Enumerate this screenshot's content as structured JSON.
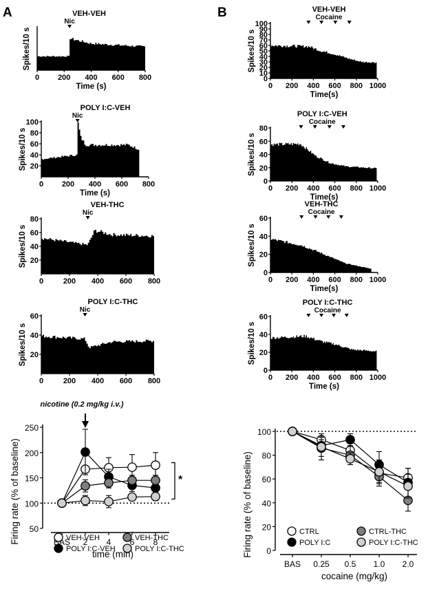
{
  "panels": {
    "A": "A",
    "B": "B"
  },
  "chart_data": [
    {
      "type": "bar",
      "id": "A-veh-veh",
      "title": "VEH-VEH",
      "marker_label": "Nic",
      "marker_times": [
        240
      ],
      "xlabel": "Time (s)",
      "ylabel": "Spikes/10 s",
      "xlim": [
        0,
        800
      ],
      "ylim": [
        0,
        40
      ],
      "xticks": [
        0,
        200,
        400,
        600,
        800
      ],
      "yticks": [],
      "profile": [
        [
          0,
          13
        ],
        [
          240,
          13
        ],
        [
          245,
          30
        ],
        [
          265,
          29
        ],
        [
          400,
          25
        ],
        [
          800,
          22
        ]
      ],
      "end_time": 800
    },
    {
      "type": "bar",
      "id": "A-polyic-veh",
      "title": "POLY I:C-VEH",
      "marker_label": "Nic",
      "marker_times": [
        270
      ],
      "xlabel": "Time (s)",
      "ylabel": "Spikes/10 s",
      "xlim": [
        0,
        800
      ],
      "ylim": [
        0,
        100
      ],
      "xticks": [
        0,
        200,
        400,
        600,
        800
      ],
      "yticks": [
        20,
        40,
        60,
        80,
        100
      ],
      "profile": [
        [
          0,
          32
        ],
        [
          270,
          40
        ],
        [
          275,
          97
        ],
        [
          295,
          72
        ],
        [
          330,
          58
        ],
        [
          650,
          58
        ],
        [
          730,
          50
        ]
      ],
      "end_time": 730
    },
    {
      "type": "bar",
      "id": "A-veh-thc",
      "title": "VEH-THC",
      "marker_label": "Nic",
      "marker_times": [
        330
      ],
      "xlabel": "",
      "ylabel": "Spikes/10 s",
      "xlim": [
        0,
        800
      ],
      "ylim": [
        0,
        80
      ],
      "xticks": [
        0,
        200,
        400,
        600,
        800
      ],
      "yticks": [
        20,
        40,
        60,
        80
      ],
      "profile": [
        [
          0,
          52
        ],
        [
          330,
          42
        ],
        [
          380,
          63
        ],
        [
          500,
          57
        ],
        [
          800,
          55
        ]
      ],
      "end_time": 800
    },
    {
      "type": "bar",
      "id": "A-polyic-thc",
      "title": "POLY I:C-THC",
      "marker_label": "Nic",
      "marker_times": [
        310
      ],
      "xlabel": "",
      "ylabel": "Spikes/10 s",
      "xlim": [
        0,
        800
      ],
      "ylim": [
        0,
        60
      ],
      "xticks": [
        0,
        200,
        400,
        600,
        800
      ],
      "yticks": [
        20,
        40,
        60
      ],
      "profile": [
        [
          0,
          39
        ],
        [
          310,
          36
        ],
        [
          340,
          27
        ],
        [
          500,
          33
        ],
        [
          800,
          34
        ]
      ],
      "end_time": 800
    },
    {
      "type": "bar",
      "id": "B-veh-veh",
      "title": "VEH-VEH",
      "marker_label": "Cocaine",
      "marker_times": [
        355,
        475,
        605,
        735
      ],
      "xlabel": "Time(s)",
      "ylabel": "Spikes/10 s",
      "xlim": [
        0,
        1000
      ],
      "ylim": [
        0,
        100
      ],
      "xticks": [
        0,
        200,
        400,
        600,
        800,
        1000
      ],
      "yticks": [
        0,
        10,
        20,
        30,
        40,
        50,
        60,
        70,
        80,
        90,
        100
      ],
      "profile": [
        [
          0,
          60
        ],
        [
          360,
          58
        ],
        [
          470,
          50
        ],
        [
          600,
          44
        ],
        [
          730,
          36
        ],
        [
          850,
          30
        ],
        [
          990,
          29
        ]
      ],
      "end_time": 990
    },
    {
      "type": "bar",
      "id": "B-polyic-veh",
      "title": "POLY I:C-VEH",
      "marker_label": "Cocaine",
      "marker_times": [
        285,
        415,
        550,
        680
      ],
      "xlabel": "Time(s)",
      "ylabel": "Spikes/10 s",
      "xlim": [
        0,
        1000
      ],
      "ylim": [
        0,
        80
      ],
      "xticks": [
        0,
        200,
        400,
        600,
        800,
        1000
      ],
      "yticks": [
        0,
        20,
        40,
        60,
        80
      ],
      "profile": [
        [
          0,
          55
        ],
        [
          280,
          56
        ],
        [
          420,
          38
        ],
        [
          560,
          27
        ],
        [
          700,
          22
        ],
        [
          990,
          19
        ]
      ],
      "end_time": 990
    },
    {
      "type": "bar",
      "id": "B-veh-thc",
      "title": "VEH-THC",
      "marker_label": "Cocaine",
      "marker_times": [
        290,
        420,
        540,
        660
      ],
      "xlabel": "Time(s)",
      "ylabel": "Spikes/10 s",
      "xlim": [
        0,
        1000
      ],
      "ylim": [
        0,
        60
      ],
      "xticks": [
        0,
        200,
        400,
        600,
        800,
        1000
      ],
      "yticks": [
        0,
        20,
        40,
        60
      ],
      "profile": [
        [
          0,
          37
        ],
        [
          290,
          30
        ],
        [
          420,
          24
        ],
        [
          560,
          17
        ],
        [
          700,
          10
        ],
        [
          940,
          4
        ]
      ],
      "end_time": 940
    },
    {
      "type": "bar",
      "id": "B-polyic-thc",
      "title": "POLY I:C-THC",
      "marker_label": "Cocaine",
      "marker_times": [
        355,
        475,
        590,
        710
      ],
      "xlabel": "Time (s)",
      "ylabel": "Spikes/10 s",
      "xlim": [
        0,
        1000
      ],
      "ylim": [
        0,
        60
      ],
      "xticks": [
        0,
        200,
        400,
        600,
        800,
        1000
      ],
      "yticks": [
        0,
        20,
        40,
        60
      ],
      "profile": [
        [
          0,
          36
        ],
        [
          330,
          38
        ],
        [
          480,
          32
        ],
        [
          600,
          29
        ],
        [
          760,
          23
        ],
        [
          990,
          21
        ]
      ],
      "end_time": 990
    },
    {
      "type": "line",
      "id": "A-summary",
      "annotation": "nicotine (0.2 mg/kg i.v.)",
      "significance": "*",
      "categories": [
        "BAS",
        "2",
        "4",
        "6",
        "8"
      ],
      "xlabel": "time (min)",
      "ylabel": "Firing rate (% of baseline)",
      "ylim": [
        50,
        250
      ],
      "yticks": [
        50,
        100,
        150,
        200,
        250
      ],
      "baseline": 100,
      "series": [
        {
          "name": "VEH-VEH",
          "fill": "#ffffff",
          "values": [
            100,
            167,
            170,
            171,
            175
          ],
          "err": [
            0,
            7,
            20,
            25,
            25
          ]
        },
        {
          "name": "POLY I:C-VEH",
          "fill": "#000000",
          "values": [
            100,
            201,
            152,
            135,
            130
          ],
          "err": [
            0,
            45,
            15,
            12,
            10
          ]
        },
        {
          "name": "VEH-THC",
          "fill": "#7f7f7f",
          "values": [
            100,
            134,
            140,
            145,
            145
          ],
          "err": [
            0,
            12,
            10,
            10,
            10
          ]
        },
        {
          "name": "POLY I:C-THC",
          "fill": "#d0d0d0",
          "values": [
            100,
            105,
            103,
            112,
            113
          ],
          "err": [
            0,
            10,
            12,
            5,
            8
          ]
        }
      ],
      "legend_order": [
        "VEH-VEH",
        "VEH-THC",
        "POLY I:C-VEH",
        "POLY I:C-THC"
      ]
    },
    {
      "type": "line",
      "id": "B-summary",
      "categories": [
        "BAS",
        "0.25",
        "0.5",
        "1.0",
        "2.0"
      ],
      "xlabel": "cocaine (mg/kg)",
      "ylabel": "Firing rate (% of baseline)",
      "ylim": [
        0,
        100
      ],
      "yticks": [
        0,
        20,
        40,
        60,
        80,
        100
      ],
      "baseline": 100,
      "series": [
        {
          "name": "CTRL",
          "fill": "#ffffff",
          "values": [
            100,
            93,
            84,
            65,
            61
          ],
          "err": [
            0,
            5,
            6,
            8,
            8
          ]
        },
        {
          "name": "POLY I:C",
          "fill": "#000000",
          "values": [
            100,
            88,
            93,
            72,
            57
          ],
          "err": [
            0,
            5,
            5,
            11,
            12
          ]
        },
        {
          "name": "CTRL-THC",
          "fill": "#7f7f7f",
          "values": [
            100,
            86,
            80,
            62,
            42
          ],
          "err": [
            0,
            10,
            8,
            8,
            9
          ]
        },
        {
          "name": "POLY I:C-THC",
          "fill": "#d0d0d0",
          "values": [
            100,
            87,
            77,
            66,
            54
          ],
          "err": [
            0,
            8,
            5,
            10,
            10
          ]
        }
      ],
      "legend_order": [
        "CTRL",
        "CTRL-THC",
        "POLY I:C",
        "POLY I:C-THC"
      ]
    }
  ]
}
